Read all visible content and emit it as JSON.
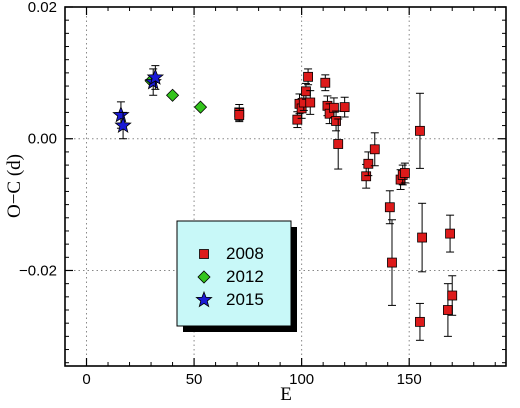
{
  "chart_data": {
    "type": "scatter",
    "xlabel": "E",
    "ylabel": "O−C (d)",
    "xlim": [
      -10,
      195
    ],
    "ylim": [
      -0.0345,
      0.02
    ],
    "x_ticks": [
      0,
      50,
      100,
      150
    ],
    "y_ticks": [
      0.02,
      0.0,
      -0.02
    ],
    "x_tick_labels": [
      "0",
      "50",
      "100",
      "150"
    ],
    "y_tick_labels": [
      "0.02",
      "0.00",
      "−0.02"
    ],
    "grid": true,
    "legend_position": "lower-center",
    "series": [
      {
        "name": "2008",
        "marker": "square",
        "color": "#dd1a1a",
        "points": [
          {
            "x": 71,
            "y": 0.004,
            "err": 0.0012
          },
          {
            "x": 71,
            "y": 0.0036,
            "err": 0.001
          },
          {
            "x": 98,
            "y": 0.0029,
            "err": 0.0012
          },
          {
            "x": 99,
            "y": 0.0053,
            "err": 0.0015
          },
          {
            "x": 100,
            "y": 0.0046,
            "err": 0.0015
          },
          {
            "x": 101,
            "y": 0.0055,
            "err": 0.0012
          },
          {
            "x": 102,
            "y": 0.0072,
            "err": 0.0012
          },
          {
            "x": 103,
            "y": 0.0094,
            "err": 0.0012
          },
          {
            "x": 104,
            "y": 0.0055,
            "err": 0.0018
          },
          {
            "x": 111,
            "y": 0.0085,
            "err": 0.0012
          },
          {
            "x": 112,
            "y": 0.005,
            "err": 0.0015
          },
          {
            "x": 113,
            "y": 0.0038,
            "err": 0.0015
          },
          {
            "x": 115,
            "y": 0.0047,
            "err": 0.0015
          },
          {
            "x": 116,
            "y": 0.0027,
            "err": 0.0015
          },
          {
            "x": 117,
            "y": -0.0008,
            "err": 0.0038
          },
          {
            "x": 120,
            "y": 0.0048,
            "err": 0.0015
          },
          {
            "x": 130,
            "y": -0.0057,
            "err": 0.0018
          },
          {
            "x": 131,
            "y": -0.0038,
            "err": 0.0018
          },
          {
            "x": 134,
            "y": -0.0016,
            "err": 0.0025
          },
          {
            "x": 141,
            "y": -0.0104,
            "err": 0.0025
          },
          {
            "x": 142,
            "y": -0.0188,
            "err": 0.0065
          },
          {
            "x": 146,
            "y": -0.0062,
            "err": 0.0015
          },
          {
            "x": 147,
            "y": -0.0055,
            "err": 0.0015
          },
          {
            "x": 148,
            "y": -0.0052,
            "err": 0.0015
          },
          {
            "x": 155,
            "y": -0.0278,
            "err": 0.0028
          },
          {
            "x": 155,
            "y": 0.0012,
            "err": 0.0057
          },
          {
            "x": 156,
            "y": -0.015,
            "err": 0.0052
          },
          {
            "x": 168,
            "y": -0.026,
            "err": 0.004
          },
          {
            "x": 169,
            "y": -0.0144,
            "err": 0.0028
          },
          {
            "x": 170,
            "y": -0.0238,
            "err": 0.003
          }
        ]
      },
      {
        "name": "2012",
        "marker": "diamond",
        "color": "#33c41c",
        "points": [
          {
            "x": 30,
            "y": 0.0088,
            "err": 0
          },
          {
            "x": 40,
            "y": 0.0066,
            "err": 0
          },
          {
            "x": 53,
            "y": 0.0048,
            "err": 0
          }
        ]
      },
      {
        "name": "2015",
        "marker": "star",
        "color": "#1a1ad6",
        "points": [
          {
            "x": 16,
            "y": 0.0036,
            "err": 0.002
          },
          {
            "x": 17,
            "y": 0.002,
            "err": 0.002
          },
          {
            "x": 31,
            "y": 0.0086,
            "err": 0.002
          },
          {
            "x": 32,
            "y": 0.0093,
            "err": 0.0018
          }
        ]
      }
    ]
  },
  "legend": {
    "items": [
      {
        "label": "2008"
      },
      {
        "label": "2012"
      },
      {
        "label": "2015"
      }
    ],
    "background": "#c8f8f8"
  }
}
